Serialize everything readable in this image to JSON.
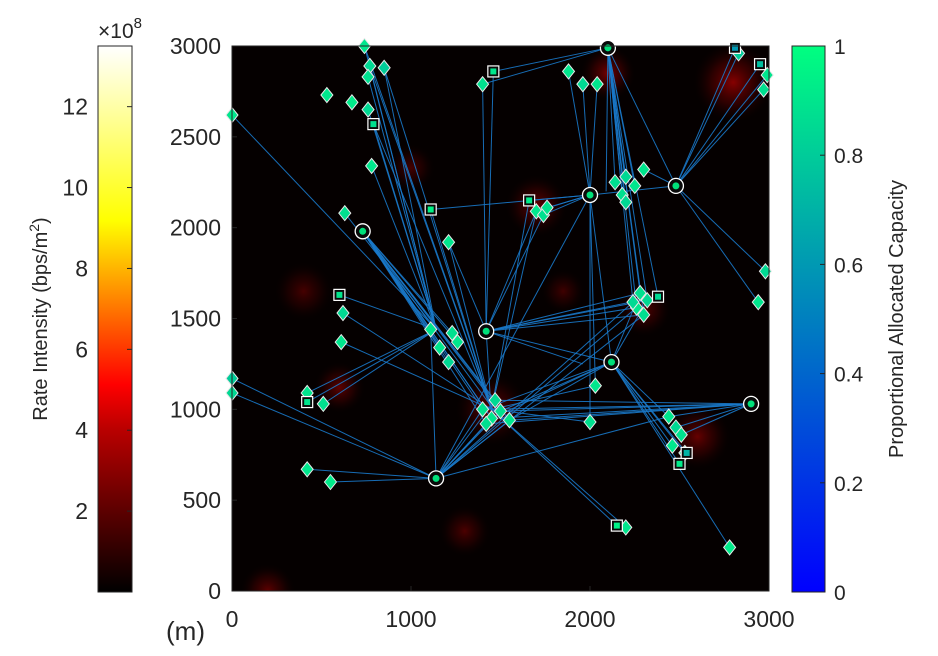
{
  "chart_data": {
    "type": "scatter",
    "title": "",
    "xlabel": "",
    "ylabel": "",
    "unit_label": "(m)",
    "xlim": [
      0,
      3000
    ],
    "ylim": [
      0,
      3000
    ],
    "x_ticks": [
      "0",
      "1000",
      "2000",
      "3000"
    ],
    "y_ticks": [
      "0",
      "500",
      "1000",
      "1500",
      "2000",
      "2500",
      "3000"
    ],
    "background_colorbar": {
      "label_main": "Rate Intensity (bps/m",
      "label_sup": "2",
      "label_end": ")",
      "multiplier_prefix": "×10",
      "multiplier_exp": "8",
      "range": [
        0,
        13.5
      ],
      "ticks": [
        "2",
        "4",
        "6",
        "8",
        "10",
        "12"
      ],
      "colormap": "hot"
    },
    "capacity_colorbar": {
      "label": "Proportional Allocated Capacity",
      "range": [
        0,
        1
      ],
      "ticks": [
        "0",
        "0.2",
        "0.4",
        "0.6",
        "0.8",
        "1"
      ],
      "colormap": "winter"
    },
    "heat_spots": [
      {
        "x": 2100,
        "y": 2850,
        "r": 150,
        "v": 0.35
      },
      {
        "x": 2800,
        "y": 2800,
        "r": 220,
        "v": 0.4
      },
      {
        "x": 1700,
        "y": 2120,
        "r": 170,
        "v": 0.3
      },
      {
        "x": 400,
        "y": 1650,
        "r": 160,
        "v": 0.2
      },
      {
        "x": 600,
        "y": 1120,
        "r": 140,
        "v": 0.28
      },
      {
        "x": 1450,
        "y": 1000,
        "r": 200,
        "v": 0.3
      },
      {
        "x": 2600,
        "y": 850,
        "r": 180,
        "v": 0.3
      },
      {
        "x": 1300,
        "y": 330,
        "r": 140,
        "v": 0.22
      },
      {
        "x": 200,
        "y": 0,
        "r": 150,
        "v": 0.28
      },
      {
        "x": 2300,
        "y": 1550,
        "r": 150,
        "v": 0.25
      },
      {
        "x": 1850,
        "y": 1650,
        "r": 120,
        "v": 0.18
      },
      {
        "x": 1000,
        "y": 2330,
        "r": 130,
        "v": 0.2
      }
    ],
    "base_stations": [
      {
        "x": 2100,
        "y": 2990
      },
      {
        "x": 730,
        "y": 1980
      },
      {
        "x": 1420,
        "y": 1430
      },
      {
        "x": 2000,
        "y": 2180
      },
      {
        "x": 2480,
        "y": 2230
      },
      {
        "x": 2120,
        "y": 1260
      },
      {
        "x": 2900,
        "y": 1030
      },
      {
        "x": 1140,
        "y": 620
      }
    ],
    "relays": [
      {
        "x": 1460,
        "y": 2860,
        "c": 0.9
      },
      {
        "x": 790,
        "y": 2570,
        "c": 0.88
      },
      {
        "x": 1660,
        "y": 2150,
        "c": 0.92
      },
      {
        "x": 1110,
        "y": 2100,
        "c": 0.95
      },
      {
        "x": 600,
        "y": 1630,
        "c": 0.9
      },
      {
        "x": 2380,
        "y": 1620,
        "c": 0.85
      },
      {
        "x": 420,
        "y": 1040,
        "c": 0.9
      },
      {
        "x": 2500,
        "y": 700,
        "c": 0.92
      },
      {
        "x": 2540,
        "y": 760,
        "c": 0.7
      },
      {
        "x": 2150,
        "y": 360,
        "c": 0.95
      },
      {
        "x": 2810,
        "y": 2990,
        "c": 0.6
      },
      {
        "x": 2950,
        "y": 2900,
        "c": 0.75
      }
    ],
    "users": [
      {
        "x": 740,
        "y": 3000,
        "c": 0.9
      },
      {
        "x": 770,
        "y": 2890,
        "c": 0.85
      },
      {
        "x": 760,
        "y": 2830,
        "c": 0.88
      },
      {
        "x": 850,
        "y": 2880,
        "c": 0.8
      },
      {
        "x": 530,
        "y": 2730,
        "c": 0.9
      },
      {
        "x": 670,
        "y": 2690,
        "c": 0.92
      },
      {
        "x": 760,
        "y": 2650,
        "c": 0.85
      },
      {
        "x": 780,
        "y": 2340,
        "c": 0.9
      },
      {
        "x": 630,
        "y": 2080,
        "c": 0.88
      },
      {
        "x": 1210,
        "y": 1920,
        "c": 0.9
      },
      {
        "x": 620,
        "y": 1530,
        "c": 0.85
      },
      {
        "x": 610,
        "y": 1370,
        "c": 0.9
      },
      {
        "x": 0,
        "y": 1170,
        "c": 0.8
      },
      {
        "x": 0,
        "y": 1090,
        "c": 0.85
      },
      {
        "x": 420,
        "y": 1090,
        "c": 0.9
      },
      {
        "x": 510,
        "y": 1030,
        "c": 0.88
      },
      {
        "x": 420,
        "y": 670,
        "c": 0.9
      },
      {
        "x": 550,
        "y": 600,
        "c": 0.92
      },
      {
        "x": 0,
        "y": 2620,
        "c": 0.9
      },
      {
        "x": 1400,
        "y": 2790,
        "c": 0.88
      },
      {
        "x": 1880,
        "y": 2860,
        "c": 0.9
      },
      {
        "x": 1960,
        "y": 2790,
        "c": 0.85
      },
      {
        "x": 2040,
        "y": 2790,
        "c": 0.9
      },
      {
        "x": 1700,
        "y": 2090,
        "c": 0.9
      },
      {
        "x": 1740,
        "y": 2070,
        "c": 0.88
      },
      {
        "x": 1760,
        "y": 2110,
        "c": 0.9
      },
      {
        "x": 2140,
        "y": 2250,
        "c": 0.88
      },
      {
        "x": 2200,
        "y": 2280,
        "c": 0.85
      },
      {
        "x": 2250,
        "y": 2230,
        "c": 0.9
      },
      {
        "x": 2300,
        "y": 2320,
        "c": 0.9
      },
      {
        "x": 2180,
        "y": 2180,
        "c": 0.88
      },
      {
        "x": 2200,
        "y": 2140,
        "c": 0.85
      },
      {
        "x": 2990,
        "y": 2840,
        "c": 0.9
      },
      {
        "x": 2970,
        "y": 2760,
        "c": 0.88
      },
      {
        "x": 2830,
        "y": 2960,
        "c": 0.8
      },
      {
        "x": 2980,
        "y": 1760,
        "c": 0.85
      },
      {
        "x": 2940,
        "y": 1590,
        "c": 0.9
      },
      {
        "x": 2280,
        "y": 1640,
        "c": 0.88
      },
      {
        "x": 2320,
        "y": 1600,
        "c": 0.85
      },
      {
        "x": 2260,
        "y": 1560,
        "c": 0.9
      },
      {
        "x": 2300,
        "y": 1520,
        "c": 0.88
      },
      {
        "x": 2240,
        "y": 1590,
        "c": 0.85
      },
      {
        "x": 1110,
        "y": 1440,
        "c": 0.9
      },
      {
        "x": 1160,
        "y": 1340,
        "c": 0.9
      },
      {
        "x": 1230,
        "y": 1420,
        "c": 0.88
      },
      {
        "x": 1260,
        "y": 1370,
        "c": 0.9
      },
      {
        "x": 1210,
        "y": 1260,
        "c": 0.85
      },
      {
        "x": 1400,
        "y": 1000,
        "c": 0.88
      },
      {
        "x": 1450,
        "y": 950,
        "c": 0.9
      },
      {
        "x": 1500,
        "y": 990,
        "c": 0.88
      },
      {
        "x": 1470,
        "y": 1050,
        "c": 0.85
      },
      {
        "x": 1550,
        "y": 940,
        "c": 0.9
      },
      {
        "x": 1420,
        "y": 920,
        "c": 0.88
      },
      {
        "x": 2030,
        "y": 1130,
        "c": 0.9
      },
      {
        "x": 2000,
        "y": 930,
        "c": 0.88
      },
      {
        "x": 2440,
        "y": 960,
        "c": 0.9
      },
      {
        "x": 2480,
        "y": 900,
        "c": 0.85
      },
      {
        "x": 2510,
        "y": 860,
        "c": 0.88
      },
      {
        "x": 2460,
        "y": 800,
        "c": 0.9
      },
      {
        "x": 2530,
        "y": 760,
        "c": 0.85
      },
      {
        "x": 2200,
        "y": 350,
        "c": 0.9
      },
      {
        "x": 2780,
        "y": 240,
        "c": 0.92
      }
    ],
    "links": [
      [
        2100,
        2990,
        2090,
        2200
      ],
      [
        2100,
        2990,
        2140,
        2250
      ],
      [
        2100,
        2990,
        2200,
        2280
      ],
      [
        2100,
        2990,
        2250,
        2230
      ],
      [
        2100,
        2990,
        2200,
        2140
      ],
      [
        2100,
        2990,
        2180,
        2180
      ],
      [
        2100,
        2990,
        2240,
        1590
      ],
      [
        2100,
        2990,
        2280,
        1640
      ],
      [
        2100,
        2990,
        2300,
        1520
      ],
      [
        2100,
        2990,
        2320,
        1600
      ],
      [
        2100,
        2990,
        2260,
        1560
      ],
      [
        2100,
        2990,
        2380,
        1620
      ],
      [
        2100,
        2990,
        1460,
        2860
      ],
      [
        2100,
        2990,
        1400,
        2790
      ],
      [
        2100,
        2990,
        2480,
        2230
      ],
      [
        2480,
        2230,
        2810,
        2990
      ],
      [
        2480,
        2230,
        2830,
        2960
      ],
      [
        2480,
        2230,
        2950,
        2900
      ],
      [
        2480,
        2230,
        2990,
        2840
      ],
      [
        2480,
        2230,
        2970,
        2760
      ],
      [
        2480,
        2230,
        2980,
        1760
      ],
      [
        2480,
        2230,
        2940,
        1590
      ],
      [
        2480,
        2230,
        2300,
        2320
      ],
      [
        2000,
        2180,
        1660,
        2150
      ],
      [
        2000,
        2180,
        1700,
        2090
      ],
      [
        2000,
        2180,
        1740,
        2070
      ],
      [
        2000,
        2180,
        1760,
        2110
      ],
      [
        2000,
        2180,
        1110,
        2100
      ],
      [
        2000,
        2180,
        1880,
        2860
      ],
      [
        2000,
        2180,
        1960,
        2790
      ],
      [
        2000,
        2180,
        2040,
        2790
      ],
      [
        2000,
        2180,
        2120,
        1260
      ],
      [
        2000,
        2180,
        2030,
        1130
      ],
      [
        2000,
        2180,
        2000,
        930
      ],
      [
        2000,
        2180,
        2480,
        2230
      ],
      [
        1420,
        1430,
        1700,
        2090
      ],
      [
        1420,
        1430,
        1740,
        2070
      ],
      [
        1420,
        1430,
        2280,
        1640
      ],
      [
        1420,
        1430,
        2320,
        1600
      ],
      [
        1420,
        1430,
        2260,
        1560
      ],
      [
        1420,
        1430,
        2300,
        1520
      ],
      [
        1420,
        1430,
        2380,
        1620
      ],
      [
        1420,
        1430,
        1960,
        1250
      ],
      [
        1420,
        1430,
        2120,
        1260
      ],
      [
        1420,
        1430,
        1450,
        950
      ],
      [
        730,
        1980,
        1400,
        1000
      ],
      [
        730,
        1980,
        1450,
        950
      ],
      [
        730,
        1980,
        1500,
        990
      ],
      [
        730,
        1980,
        1470,
        1050
      ],
      [
        730,
        1980,
        1550,
        940
      ],
      [
        730,
        1980,
        1420,
        920
      ],
      [
        730,
        1980,
        1430,
        980
      ],
      [
        730,
        1980,
        1490,
        960
      ],
      [
        730,
        1980,
        1110,
        1440
      ],
      [
        730,
        1980,
        1160,
        1340
      ],
      [
        730,
        1980,
        1230,
        1420
      ],
      [
        730,
        1980,
        1260,
        1370
      ],
      [
        730,
        1980,
        1210,
        1260
      ],
      [
        2900,
        1030,
        1400,
        1000
      ],
      [
        2900,
        1030,
        1450,
        950
      ],
      [
        2900,
        1030,
        1500,
        990
      ],
      [
        2900,
        1030,
        1470,
        1050
      ],
      [
        2900,
        1030,
        1550,
        940
      ],
      [
        2900,
        1030,
        1420,
        920
      ],
      [
        2900,
        1030,
        2440,
        960
      ],
      [
        2900,
        1030,
        2480,
        900
      ],
      [
        2900,
        1030,
        2510,
        860
      ],
      [
        2120,
        1260,
        1400,
        1000
      ],
      [
        2120,
        1260,
        1450,
        950
      ],
      [
        2120,
        1260,
        1500,
        990
      ],
      [
        2120,
        1260,
        1550,
        940
      ],
      [
        2120,
        1260,
        2460,
        800
      ],
      [
        2120,
        1260,
        2530,
        760
      ],
      [
        2120,
        1260,
        2500,
        700
      ],
      [
        2120,
        1260,
        2540,
        760
      ],
      [
        2120,
        1260,
        2440,
        960
      ],
      [
        2120,
        1260,
        2780,
        240
      ],
      [
        2120,
        1260,
        2280,
        1640
      ],
      [
        2120,
        1260,
        2320,
        1600
      ],
      [
        1140,
        620,
        1400,
        1000
      ],
      [
        1140,
        620,
        1450,
        950
      ],
      [
        1140,
        620,
        1500,
        990
      ],
      [
        1140,
        620,
        1470,
        1050
      ],
      [
        1140,
        620,
        1420,
        920
      ],
      [
        1140,
        620,
        1550,
        940
      ],
      [
        1140,
        620,
        2300,
        1520
      ],
      [
        1140,
        620,
        2260,
        1560
      ],
      [
        1140,
        620,
        2240,
        1590
      ],
      [
        1140,
        620,
        2000,
        2180
      ],
      [
        1140,
        620,
        2440,
        960
      ],
      [
        1140,
        620,
        420,
        670
      ],
      [
        1140,
        620,
        550,
        600
      ],
      [
        1140,
        620,
        0,
        1170
      ],
      [
        1140,
        620,
        0,
        1090
      ],
      [
        1140,
        620,
        1110,
        1440
      ],
      [
        1420,
        1430,
        1460,
        2860
      ],
      [
        1420,
        1430,
        1400,
        2790
      ],
      [
        1420,
        1430,
        1210,
        1920
      ],
      [
        1140,
        1440,
        740,
        3000
      ],
      [
        1140,
        1440,
        770,
        2890
      ],
      [
        1140,
        1440,
        760,
        2830
      ],
      [
        1140,
        1440,
        850,
        2880
      ],
      [
        1140,
        1440,
        790,
        2570
      ],
      [
        1140,
        1440,
        760,
        2650
      ],
      [
        1140,
        1440,
        780,
        2340
      ],
      [
        1140,
        1440,
        630,
        2080
      ],
      [
        1140,
        1440,
        0,
        2620
      ],
      [
        1140,
        1440,
        600,
        1630
      ],
      [
        1140,
        1440,
        420,
        1040
      ],
      [
        1140,
        1440,
        420,
        1090
      ],
      [
        1140,
        1440,
        510,
        1030
      ],
      [
        1450,
        1000,
        740,
        3000
      ],
      [
        1450,
        1000,
        770,
        2890
      ],
      [
        1450,
        1000,
        850,
        2880
      ],
      [
        1450,
        1000,
        790,
        2570
      ],
      [
        1450,
        1000,
        1210,
        1920
      ],
      [
        1450,
        1000,
        1110,
        2100
      ],
      [
        1450,
        1000,
        1660,
        2150
      ],
      [
        1450,
        1000,
        1700,
        2090
      ],
      [
        1450,
        1000,
        2150,
        360
      ],
      [
        1450,
        1000,
        2200,
        350
      ],
      [
        1450,
        1000,
        2000,
        930
      ],
      [
        1450,
        1000,
        2030,
        1130
      ],
      [
        1450,
        1000,
        620,
        1530
      ],
      [
        1450,
        1000,
        610,
        1370
      ]
    ]
  }
}
